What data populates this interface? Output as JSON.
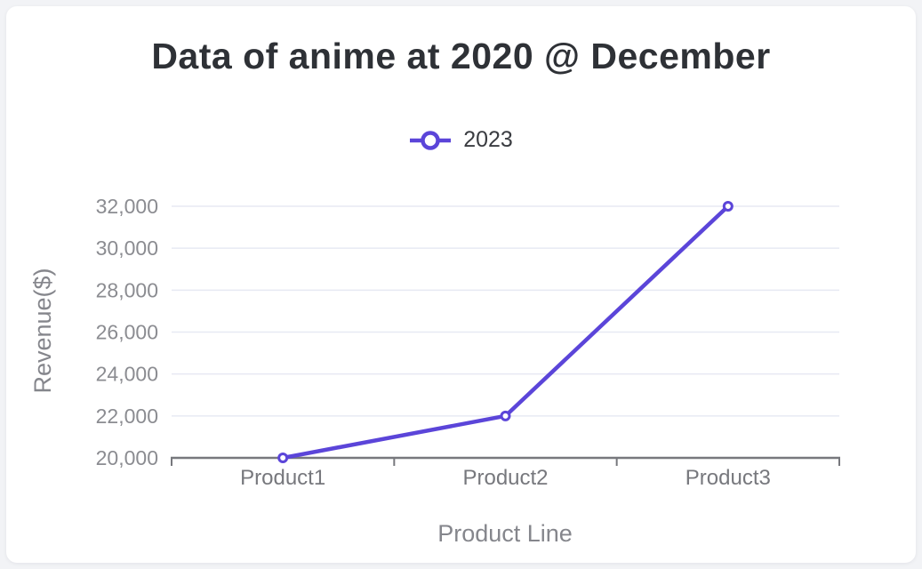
{
  "page": {
    "background_color": "#f2f3f6",
    "card_background": "#ffffff"
  },
  "chart_data": {
    "type": "line",
    "title": "Data of anime at 2020 @ December",
    "xlabel": "Product Line",
    "ylabel": "Revenue($)",
    "categories": [
      "Product1",
      "Product2",
      "Product3"
    ],
    "series": [
      {
        "name": "2023",
        "values": [
          20000,
          22000,
          32000
        ]
      }
    ],
    "ylim": [
      20000,
      32000
    ],
    "yticks": [
      20000,
      22000,
      24000,
      26000,
      28000,
      30000,
      32000
    ],
    "ytick_labels": [
      "20,000",
      "22,000",
      "24,000",
      "26,000",
      "28,000",
      "30,000",
      "32,000"
    ],
    "grid": true,
    "legend_position": "top",
    "marker": "hollow-circle",
    "colors": {
      "line": "#5b45d9",
      "marker_fill": "#ffffff",
      "grid": "#e7e9f3",
      "axis": "#77787d",
      "tick_label": "#8b8c91",
      "x_tick_label": "#77787d",
      "axis_title": "#85868c",
      "title": "#2e3136"
    }
  }
}
